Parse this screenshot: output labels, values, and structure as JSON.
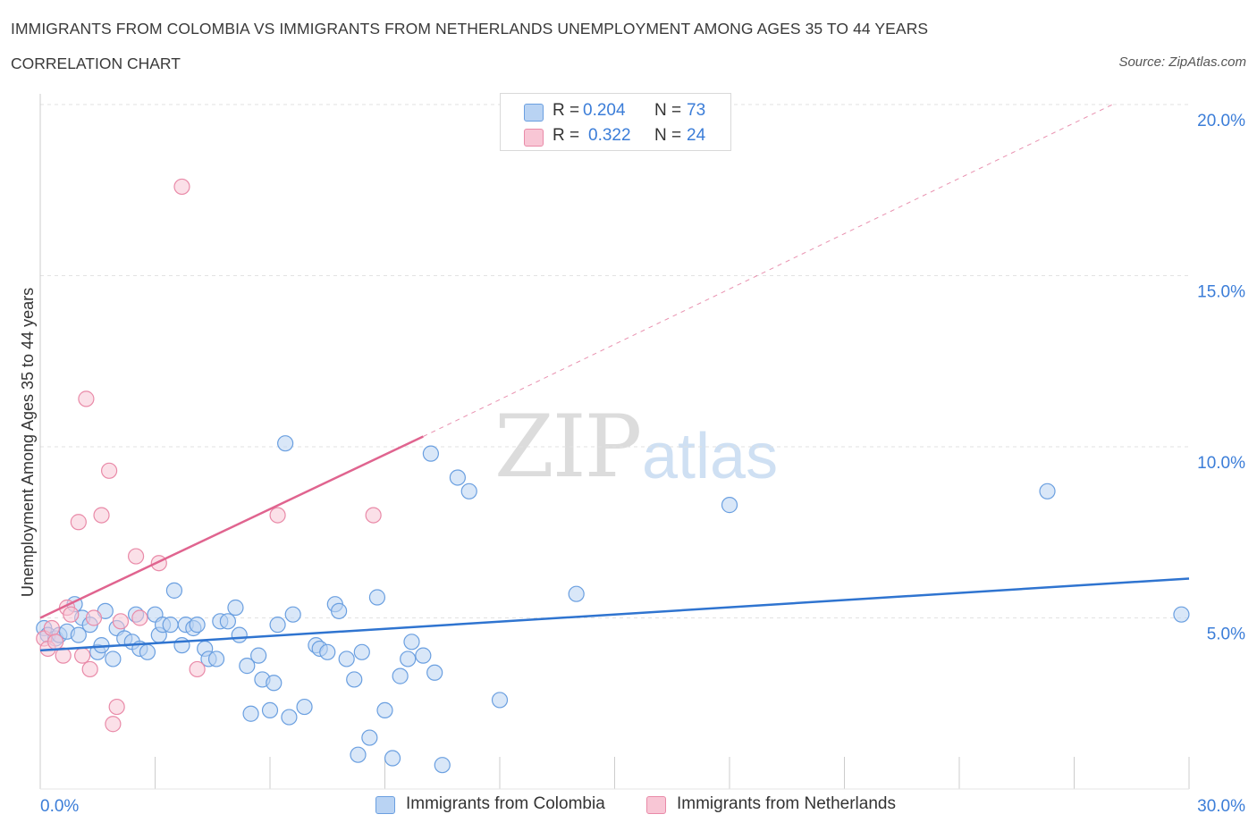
{
  "header": {
    "title": "IMMIGRANTS FROM COLOMBIA VS IMMIGRANTS FROM NETHERLANDS UNEMPLOYMENT AMONG AGES 35 TO 44 YEARS",
    "subtitle": "CORRELATION CHART",
    "source": "Source: ZipAtlas.com"
  },
  "watermark": {
    "zip": "ZIP",
    "atlas": "atlas"
  },
  "legend": {
    "colombia": {
      "r_label": "R =",
      "r_value": "0.204",
      "n_label": "N =",
      "n_value": "73"
    },
    "netherlands": {
      "r_label": "R =",
      "r_value": "0.322",
      "n_label": "N =",
      "n_value": "24"
    }
  },
  "bottom_legend": {
    "colombia": "Immigrants from Colombia",
    "netherlands": "Immigrants from Netherlands"
  },
  "colors": {
    "colombia_fill": "#b9d3f3",
    "colombia_stroke": "#6a9fe0",
    "colombia_line": "#2f74d0",
    "netherlands_fill": "#f8c6d5",
    "netherlands_stroke": "#e98aa8",
    "netherlands_line": "#e0648f",
    "axis_label": "#3b7dd8",
    "grid": "#e2e2e2"
  },
  "chart_data": {
    "type": "scatter",
    "title": "IMMIGRANTS FROM COLOMBIA VS IMMIGRANTS FROM NETHERLANDS UNEMPLOYMENT AMONG AGES 35 TO 44 YEARS",
    "xlabel": "",
    "ylabel": "Unemployment Among Ages 35 to 44 years",
    "xlim": [
      0,
      30
    ],
    "ylim": [
      0,
      20
    ],
    "x_tick_labels": [
      "0.0%",
      "30.0%"
    ],
    "y_ticks": [
      5,
      10,
      15,
      20
    ],
    "y_tick_labels": [
      "5.0%",
      "10.0%",
      "15.0%",
      "20.0%"
    ],
    "grid": true,
    "legend_position": "top-center",
    "series": [
      {
        "name": "Immigrants from Colombia",
        "R": 0.204,
        "N": 73,
        "trend": {
          "x": [
            0,
            30
          ],
          "y": [
            4.05,
            6.15
          ],
          "style": "solid"
        },
        "points": [
          [
            0.1,
            4.7
          ],
          [
            0.2,
            4.5
          ],
          [
            0.4,
            4.4
          ],
          [
            0.5,
            4.5
          ],
          [
            0.7,
            4.6
          ],
          [
            0.9,
            5.4
          ],
          [
            1.0,
            4.5
          ],
          [
            1.1,
            5.0
          ],
          [
            1.3,
            4.8
          ],
          [
            1.5,
            4.0
          ],
          [
            1.6,
            4.2
          ],
          [
            1.7,
            5.2
          ],
          [
            1.9,
            3.8
          ],
          [
            2.0,
            4.7
          ],
          [
            2.2,
            4.4
          ],
          [
            2.4,
            4.3
          ],
          [
            2.5,
            5.1
          ],
          [
            2.6,
            4.1
          ],
          [
            2.8,
            4.0
          ],
          [
            3.0,
            5.1
          ],
          [
            3.1,
            4.5
          ],
          [
            3.2,
            4.8
          ],
          [
            3.4,
            4.8
          ],
          [
            3.5,
            5.8
          ],
          [
            3.7,
            4.2
          ],
          [
            3.8,
            4.8
          ],
          [
            4.0,
            4.7
          ],
          [
            4.1,
            4.8
          ],
          [
            4.3,
            4.1
          ],
          [
            4.4,
            3.8
          ],
          [
            4.6,
            3.8
          ],
          [
            4.7,
            4.9
          ],
          [
            4.9,
            4.9
          ],
          [
            5.1,
            5.3
          ],
          [
            5.2,
            4.5
          ],
          [
            5.4,
            3.6
          ],
          [
            5.5,
            2.2
          ],
          [
            5.7,
            3.9
          ],
          [
            5.8,
            3.2
          ],
          [
            6.0,
            2.3
          ],
          [
            6.1,
            3.1
          ],
          [
            6.2,
            4.8
          ],
          [
            6.4,
            10.1
          ],
          [
            6.5,
            2.1
          ],
          [
            6.6,
            5.1
          ],
          [
            6.9,
            2.4
          ],
          [
            7.2,
            4.2
          ],
          [
            7.3,
            4.1
          ],
          [
            7.5,
            4.0
          ],
          [
            7.7,
            5.4
          ],
          [
            7.8,
            5.2
          ],
          [
            8.0,
            3.8
          ],
          [
            8.2,
            3.2
          ],
          [
            8.3,
            1.0
          ],
          [
            8.4,
            4.0
          ],
          [
            8.6,
            1.5
          ],
          [
            8.8,
            5.6
          ],
          [
            9.0,
            2.3
          ],
          [
            9.2,
            0.9
          ],
          [
            9.4,
            3.3
          ],
          [
            9.6,
            3.8
          ],
          [
            9.7,
            4.3
          ],
          [
            10.0,
            3.9
          ],
          [
            10.2,
            9.8
          ],
          [
            10.3,
            3.4
          ],
          [
            10.5,
            0.7
          ],
          [
            10.9,
            9.1
          ],
          [
            11.2,
            8.7
          ],
          [
            12.0,
            2.6
          ],
          [
            14.0,
            5.7
          ],
          [
            18.0,
            8.3
          ],
          [
            26.3,
            8.7
          ],
          [
            29.8,
            5.1
          ]
        ]
      },
      {
        "name": "Immigrants from Netherlands",
        "R": 0.322,
        "N": 24,
        "trend": {
          "x": [
            0,
            10
          ],
          "y": [
            5.0,
            10.3
          ],
          "style": "solid",
          "extended": {
            "x": [
              10,
              28
            ],
            "y": [
              10.3,
              20.0
            ],
            "style": "dashed"
          }
        },
        "points": [
          [
            0.1,
            4.4
          ],
          [
            0.2,
            4.1
          ],
          [
            0.3,
            4.7
          ],
          [
            0.4,
            4.3
          ],
          [
            0.6,
            3.9
          ],
          [
            0.7,
            5.3
          ],
          [
            0.8,
            5.1
          ],
          [
            1.0,
            7.8
          ],
          [
            1.1,
            3.9
          ],
          [
            1.2,
            11.4
          ],
          [
            1.3,
            3.5
          ],
          [
            1.4,
            5.0
          ],
          [
            1.6,
            8.0
          ],
          [
            1.8,
            9.3
          ],
          [
            1.9,
            1.9
          ],
          [
            2.0,
            2.4
          ],
          [
            2.1,
            4.9
          ],
          [
            2.5,
            6.8
          ],
          [
            2.6,
            5.0
          ],
          [
            3.1,
            6.6
          ],
          [
            3.7,
            17.6
          ],
          [
            4.1,
            3.5
          ],
          [
            6.2,
            8.0
          ],
          [
            8.7,
            8.0
          ]
        ]
      }
    ]
  }
}
